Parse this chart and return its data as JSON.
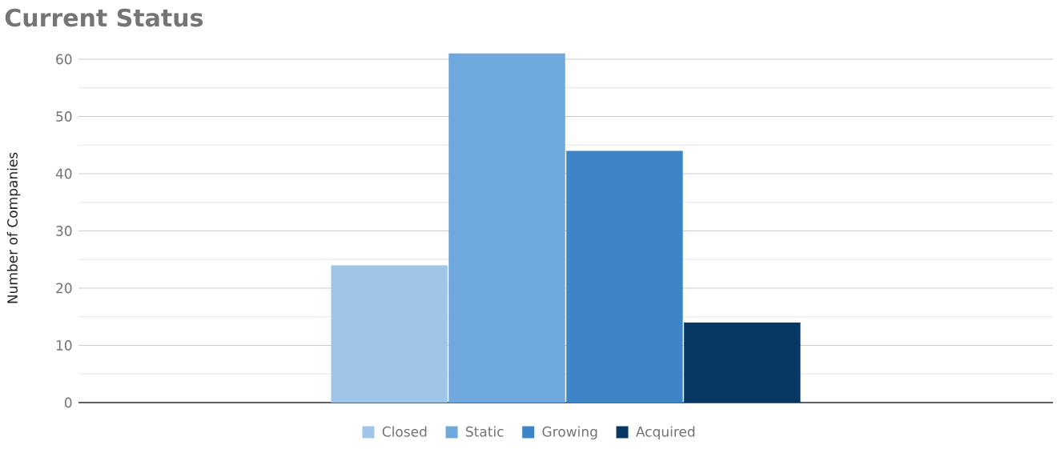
{
  "chart_data": {
    "type": "bar",
    "title": "Current Status",
    "ylabel": "Number of Companies",
    "categories": [
      null
    ],
    "series": [
      {
        "name": "Closed",
        "color": "#9fc5e8",
        "values": [
          24
        ]
      },
      {
        "name": "Static",
        "color": "#6fa8dc",
        "values": [
          61
        ]
      },
      {
        "name": "Growing",
        "color": "#3d85c6",
        "values": [
          44
        ]
      },
      {
        "name": "Acquired",
        "color": "#073763",
        "values": [
          14
        ]
      }
    ],
    "ylim": [
      0,
      61
    ],
    "yticks": [
      0,
      {
        "value": 5,
        "label": null
      },
      10,
      {
        "value": 15,
        "label": null
      },
      20,
      {
        "value": 25,
        "label": null
      },
      30,
      {
        "value": 35,
        "label": null
      },
      40,
      {
        "value": 45,
        "label": null
      },
      50,
      {
        "value": 55,
        "label": null
      },
      60
    ],
    "grid": "y",
    "legend": "bottom",
    "tick_labels": "y"
  }
}
